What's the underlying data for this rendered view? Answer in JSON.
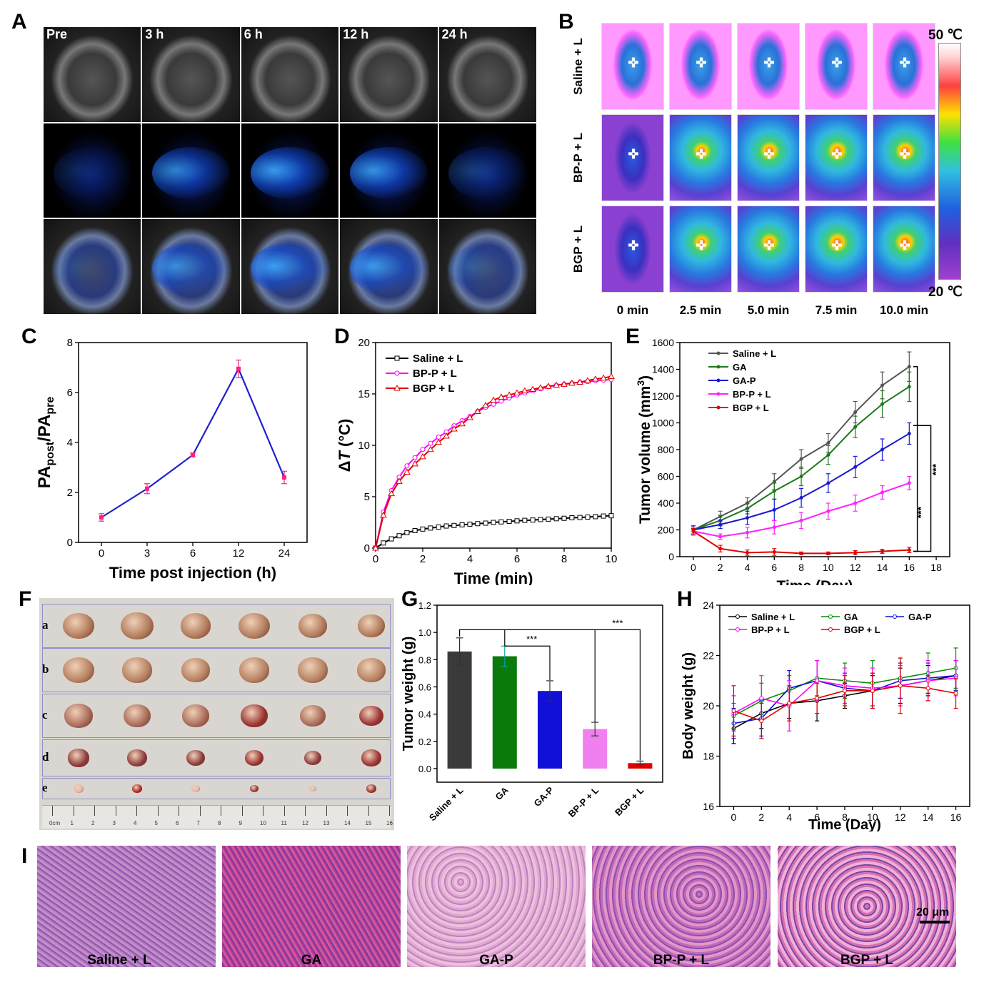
{
  "panels": {
    "A": {
      "letter": "A",
      "timepoints": [
        "Pre",
        "3 h",
        "6 h",
        "12 h",
        "24 h"
      ]
    },
    "B": {
      "letter": "B",
      "rows": [
        "Saline + L",
        "BP-P + L",
        "BGP + L"
      ],
      "cols": [
        "0 min",
        "2.5 min",
        "5.0 min",
        "7.5 min",
        "10.0 min"
      ],
      "scale_max": "50 ℃",
      "scale_min": "20 ℃"
    },
    "F": {
      "letter": "F",
      "rows": [
        "a",
        "b",
        "c",
        "d",
        "e"
      ],
      "ruler_ticks": [
        "0cm",
        "1",
        "2",
        "3",
        "4",
        "5",
        "6",
        "7",
        "8",
        "9",
        "10",
        "11",
        "12",
        "13",
        "14",
        "15",
        "16"
      ]
    },
    "I": {
      "letter": "I",
      "labels": [
        "Saline + L",
        "GA",
        "GA-P",
        "BP-P + L",
        "BGP + L"
      ],
      "scalebar": "20 μm"
    }
  },
  "chart_data": [
    {
      "panel": "C",
      "type": "line",
      "x": [
        0,
        3,
        6,
        12,
        24
      ],
      "x_ticks": [
        "0",
        "3",
        "6",
        "12",
        "24"
      ],
      "series": [
        {
          "values": [
            1.0,
            2.15,
            3.5,
            6.95,
            2.6
          ],
          "errors": [
            0.15,
            0.2,
            0.08,
            0.35,
            0.25
          ],
          "color": "#1f1fd0"
        }
      ],
      "xlabel": "Time post injection (h)",
      "ylabel_main": "PA",
      "ylabel_sub1": "post",
      "ylabel_mid": "/PA",
      "ylabel_sub2": "pre",
      "ylim": [
        0,
        8
      ],
      "y_ticks": [
        0,
        2,
        4,
        6,
        8
      ]
    },
    {
      "panel": "D",
      "type": "line",
      "x": [
        0,
        0.33,
        0.67,
        1,
        1.33,
        1.67,
        2,
        2.33,
        2.67,
        3,
        3.33,
        3.67,
        4,
        4.33,
        4.67,
        5,
        5.33,
        5.67,
        6,
        6.33,
        6.67,
        7,
        7.33,
        7.67,
        8,
        8.33,
        8.67,
        9,
        9.33,
        9.67,
        10
      ],
      "series": [
        {
          "name": "Saline + L",
          "color": "#000000",
          "values": [
            0,
            0.5,
            0.9,
            1.2,
            1.5,
            1.7,
            1.85,
            1.95,
            2.05,
            2.15,
            2.2,
            2.27,
            2.33,
            2.38,
            2.43,
            2.5,
            2.55,
            2.6,
            2.65,
            2.7,
            2.73,
            2.78,
            2.82,
            2.86,
            2.9,
            2.95,
            2.98,
            3.02,
            3.06,
            3.12,
            3.15
          ]
        },
        {
          "name": "BP-P + L",
          "color": "#ff00ff",
          "values": [
            0,
            3.5,
            5.6,
            6.9,
            8.0,
            8.8,
            9.6,
            10.2,
            10.8,
            11.3,
            11.9,
            12.4,
            12.8,
            13.3,
            13.7,
            14.0,
            14.3,
            14.6,
            14.9,
            15.1,
            15.3,
            15.5,
            15.7,
            15.85,
            15.95,
            16.05,
            16.15,
            16.2,
            16.3,
            16.35,
            16.4
          ]
        },
        {
          "name": "BGP + L",
          "color": "#e00000",
          "values": [
            0,
            3.2,
            5.3,
            6.5,
            7.4,
            8.2,
            8.9,
            9.6,
            10.3,
            10.9,
            11.6,
            12.1,
            12.7,
            13.3,
            13.9,
            14.4,
            14.7,
            14.9,
            15.1,
            15.3,
            15.45,
            15.6,
            15.75,
            15.85,
            15.95,
            16.05,
            16.15,
            16.3,
            16.45,
            16.55,
            16.7
          ]
        }
      ],
      "xlabel": "Time (min)",
      "ylabel_prefix": "Δ",
      "ylabel_italic": "T",
      "ylabel_suffix": " (°C)",
      "xlim": [
        0,
        10
      ],
      "ylim": [
        0,
        20
      ],
      "x_ticks": [
        0,
        2,
        4,
        6,
        8,
        10
      ],
      "y_ticks": [
        0,
        5,
        10,
        15,
        20
      ]
    },
    {
      "panel": "E",
      "type": "line",
      "x": [
        0,
        2,
        4,
        6,
        8,
        10,
        12,
        14,
        16
      ],
      "series": [
        {
          "name": "Saline + L",
          "color": "#555555",
          "values": [
            200,
            300,
            400,
            560,
            730,
            850,
            1080,
            1280,
            1420
          ],
          "errors": [
            30,
            40,
            40,
            60,
            70,
            70,
            80,
            100,
            110
          ]
        },
        {
          "name": "GA",
          "color": "#1a7a1a",
          "values": [
            200,
            270,
            360,
            490,
            600,
            760,
            970,
            1140,
            1270
          ],
          "errors": [
            30,
            40,
            40,
            60,
            70,
            70,
            80,
            100,
            110
          ]
        },
        {
          "name": "GA-P",
          "color": "#1a1ad0",
          "values": [
            200,
            240,
            290,
            350,
            440,
            550,
            670,
            800,
            920
          ],
          "errors": [
            30,
            30,
            50,
            80,
            70,
            70,
            80,
            80,
            80
          ]
        },
        {
          "name": "BP-P + L",
          "color": "#ff22ff",
          "values": [
            190,
            150,
            180,
            220,
            270,
            340,
            400,
            480,
            550
          ],
          "errors": [
            30,
            20,
            40,
            50,
            60,
            60,
            60,
            50,
            50
          ]
        },
        {
          "name": "BGP + L",
          "color": "#e00000",
          "values": [
            190,
            60,
            30,
            35,
            25,
            25,
            30,
            40,
            50
          ],
          "errors": [
            20,
            25,
            20,
            25,
            10,
            10,
            15,
            15,
            20
          ]
        }
      ],
      "xlabel": "Time (Day)",
      "ylabel": "Tumor volume (mm",
      "ylabel_sup": "3",
      "ylabel_end": ")",
      "xlim": [
        0,
        18
      ],
      "ylim": [
        0,
        1600
      ],
      "x_ticks": [
        0,
        2,
        4,
        6,
        8,
        10,
        12,
        14,
        16,
        18
      ],
      "y_ticks": [
        0,
        200,
        400,
        600,
        800,
        1000,
        1200,
        1400,
        1600
      ],
      "significance": "***"
    },
    {
      "panel": "G",
      "type": "bar",
      "categories": [
        "Saline + L",
        "GA",
        "GA-P",
        "BP-P + L",
        "BGP + L"
      ],
      "values": [
        0.86,
        0.825,
        0.57,
        0.29,
        0.04
      ],
      "errors": [
        0.1,
        0.075,
        0.075,
        0.05,
        0.015
      ],
      "colors": [
        "#3a3a3a",
        "#0a7a0a",
        "#1010d8",
        "#f080f0",
        "#e00000"
      ],
      "ylabel": "Tumor  weight (g)",
      "ylim": [
        -0.1,
        1.2
      ],
      "y_ticks": [
        0.0,
        0.2,
        0.4,
        0.6,
        0.8,
        1.0,
        1.2
      ],
      "significance": "***"
    },
    {
      "panel": "H",
      "type": "line",
      "x": [
        0,
        2,
        4,
        6,
        8,
        10,
        12,
        14,
        16
      ],
      "series": [
        {
          "name": "Saline + L",
          "color": "#000000",
          "values": [
            19.1,
            19.7,
            20.1,
            20.2,
            20.4,
            20.6,
            20.8,
            21.0,
            21.2
          ],
          "errors": [
            0.6,
            0.6,
            0.6,
            0.8,
            0.5,
            0.6,
            0.7,
            0.6,
            0.6
          ]
        },
        {
          "name": "GA",
          "color": "#0a8a0a",
          "values": [
            19.6,
            20.2,
            20.6,
            21.1,
            21.0,
            20.9,
            21.1,
            21.3,
            21.5
          ],
          "errors": [
            0.5,
            0.7,
            0.6,
            0.7,
            0.7,
            0.9,
            0.8,
            0.8,
            0.8
          ]
        },
        {
          "name": "GA-P",
          "color": "#1010d0",
          "values": [
            19.3,
            19.5,
            20.7,
            21.0,
            20.7,
            20.6,
            21.0,
            21.1,
            21.2
          ],
          "errors": [
            0.6,
            0.7,
            0.7,
            0.8,
            0.6,
            0.7,
            0.7,
            0.6,
            0.6
          ]
        },
        {
          "name": "BP-P + L",
          "color": "#ff00ff",
          "values": [
            19.7,
            20.3,
            20.0,
            21.0,
            20.8,
            20.7,
            20.8,
            21.0,
            21.1
          ],
          "errors": [
            0.7,
            0.9,
            1.0,
            0.8,
            0.7,
            0.8,
            0.8,
            0.8,
            0.7
          ]
        },
        {
          "name": "BGP + L",
          "color": "#e00000",
          "values": [
            19.8,
            19.4,
            20.1,
            20.3,
            20.6,
            20.6,
            20.8,
            20.7,
            20.5
          ],
          "errors": [
            1.0,
            0.7,
            0.7,
            0.6,
            0.6,
            0.7,
            1.1,
            0.5,
            0.6
          ]
        }
      ],
      "xlabel": "Time (Day)",
      "ylabel": "Body weight (g)",
      "xlim": [
        -1,
        17
      ],
      "ylim": [
        16,
        24
      ],
      "x_ticks": [
        0,
        2,
        4,
        6,
        8,
        10,
        12,
        14,
        16
      ],
      "y_ticks": [
        16,
        18,
        20,
        22,
        24
      ]
    }
  ],
  "panel_letters": {
    "C": "C",
    "D": "D",
    "E": "E",
    "G": "G",
    "H": "H"
  }
}
